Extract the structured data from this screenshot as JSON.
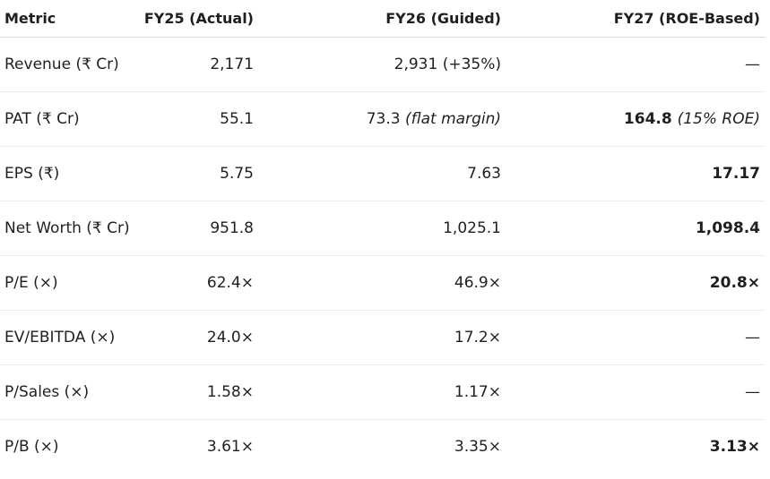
{
  "table": {
    "headers": [
      "Metric",
      "FY25 (Actual)",
      "FY26 (Guided)",
      "FY27 (ROE-Based)"
    ],
    "rows": [
      {
        "metric": "Revenue (₹ Cr)",
        "fy25": "2,171",
        "fy26": "2,931 (+35%)",
        "fy26_note": "",
        "fy27": "—",
        "fy27_note": ""
      },
      {
        "metric": "PAT (₹ Cr)",
        "fy25": "55.1",
        "fy26": "73.3 ",
        "fy26_note": "(flat margin)",
        "fy27": "164.8 ",
        "fy27_note": "(15% ROE)"
      },
      {
        "metric": "EPS (₹)",
        "fy25": "5.75",
        "fy26": "7.63",
        "fy26_note": "",
        "fy27": "17.17",
        "fy27_note": ""
      },
      {
        "metric": "Net Worth (₹ Cr)",
        "fy25": "951.8",
        "fy26": "1,025.1",
        "fy26_note": "",
        "fy27": "1,098.4",
        "fy27_note": ""
      },
      {
        "metric": "P/E (×)",
        "fy25": "62.4×",
        "fy26": "46.9×",
        "fy26_note": "",
        "fy27": "20.8×",
        "fy27_note": ""
      },
      {
        "metric": "EV/EBITDA (×)",
        "fy25": "24.0×",
        "fy26": "17.2×",
        "fy26_note": "",
        "fy27": "—",
        "fy27_note": ""
      },
      {
        "metric": "P/Sales (×)",
        "fy25": "1.58×",
        "fy26": "1.17×",
        "fy26_note": "",
        "fy27": "—",
        "fy27_note": ""
      },
      {
        "metric": "P/B (×)",
        "fy25": "3.61×",
        "fy26": "3.35×",
        "fy26_note": "",
        "fy27": "3.13×",
        "fy27_note": ""
      }
    ]
  }
}
